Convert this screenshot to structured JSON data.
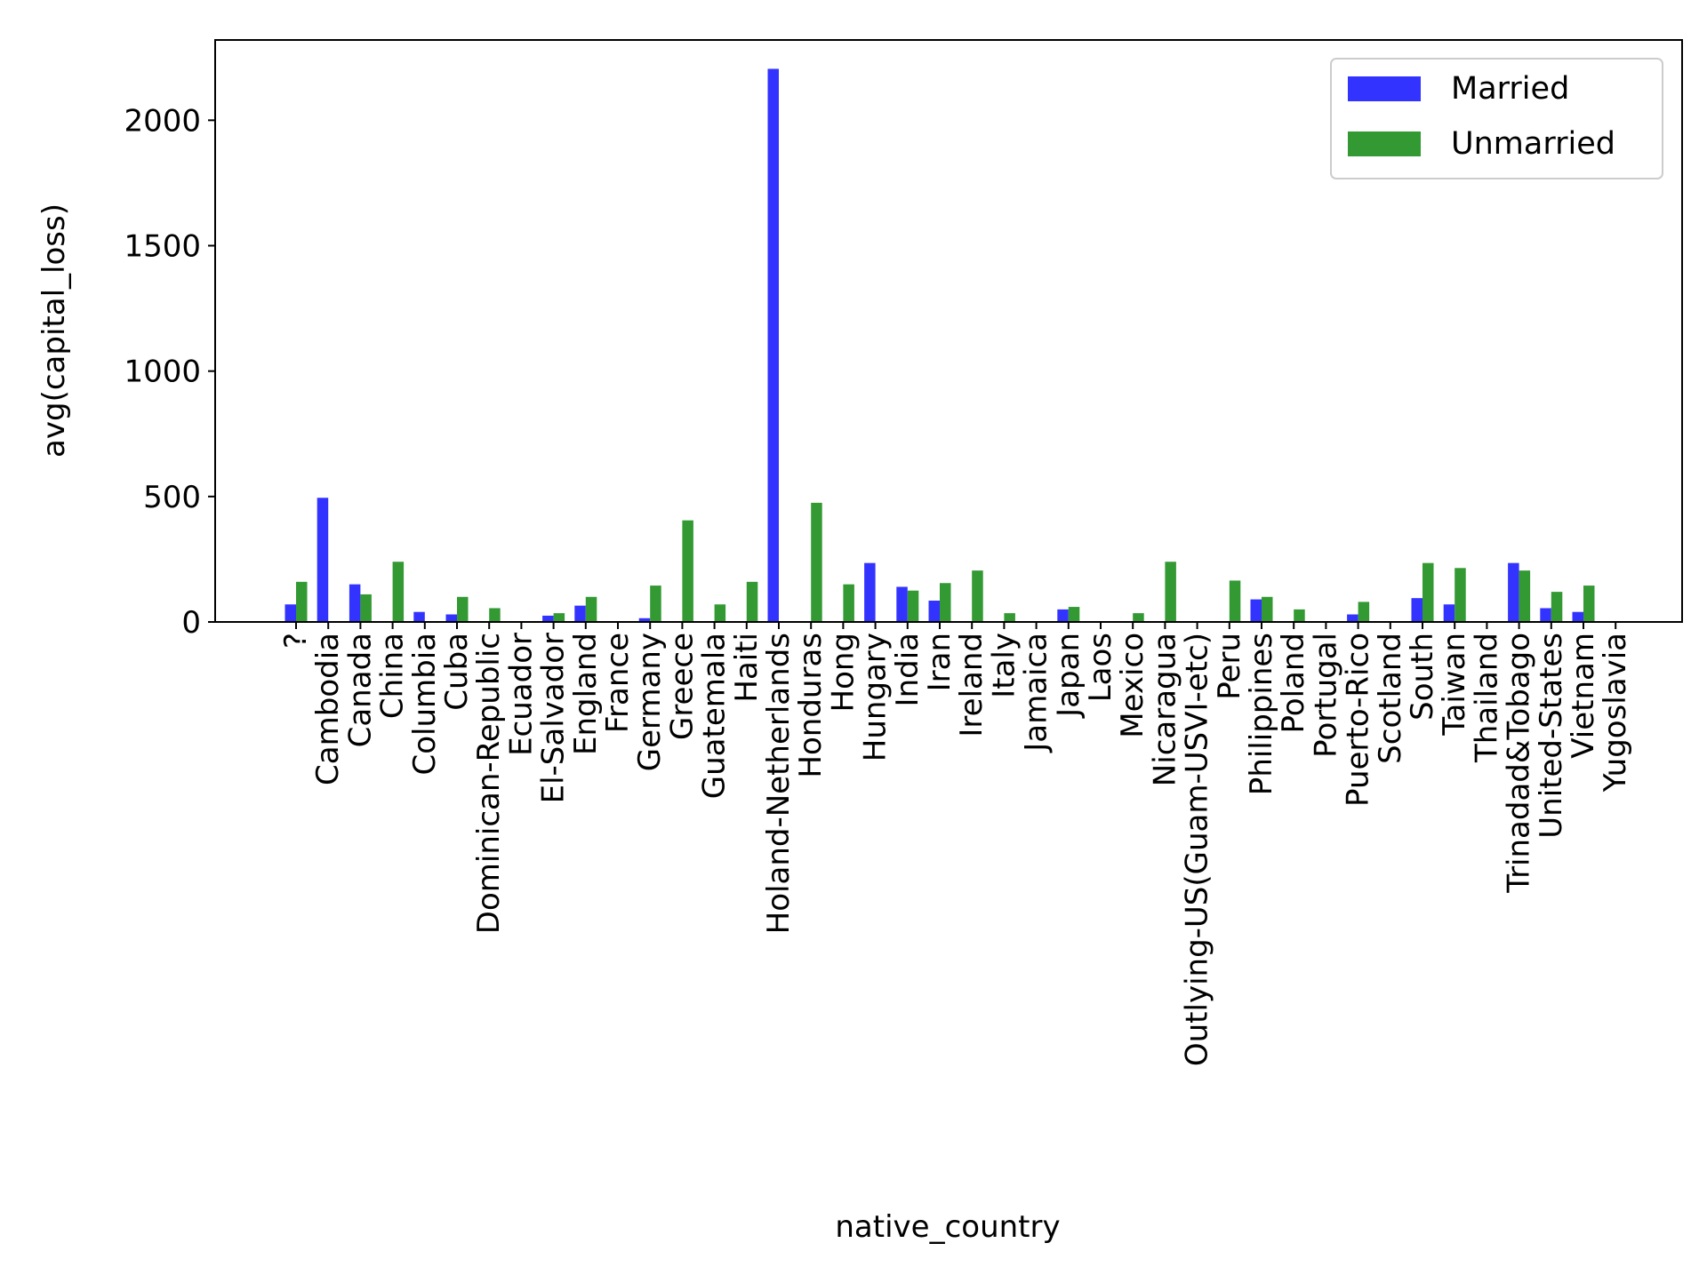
{
  "chart_data": {
    "type": "bar",
    "title": "",
    "xlabel": "native_country",
    "ylabel": "avg(capital_loss)",
    "ylim": [
      0,
      2320
    ],
    "yticks": [
      0,
      500,
      1000,
      1500,
      2000
    ],
    "grid": false,
    "legend_position": "top-right",
    "categories": [
      "?",
      "Cambodia",
      "Canada",
      "China",
      "Columbia",
      "Cuba",
      "Dominican-Republic",
      "Ecuador",
      "El-Salvador",
      "England",
      "France",
      "Germany",
      "Greece",
      "Guatemala",
      "Haiti",
      "Holand-Netherlands",
      "Honduras",
      "Hong",
      "Hungary",
      "India",
      "Iran",
      "Ireland",
      "Italy",
      "Jamaica",
      "Japan",
      "Laos",
      "Mexico",
      "Nicaragua",
      "Outlying-US(Guam-USVI-etc)",
      "Peru",
      "Philippines",
      "Poland",
      "Portugal",
      "Puerto-Rico",
      "Scotland",
      "South",
      "Taiwan",
      "Thailand",
      "Trinadad&Tobago",
      "United-States",
      "Vietnam",
      "Yugoslavia"
    ],
    "series": [
      {
        "name": "Married",
        "color": "#3333ff",
        "values": [
          70,
          495,
          150,
          0,
          40,
          30,
          0,
          0,
          25,
          65,
          0,
          15,
          0,
          0,
          0,
          2205,
          0,
          0,
          235,
          140,
          85,
          0,
          0,
          0,
          50,
          0,
          0,
          0,
          0,
          0,
          90,
          0,
          0,
          30,
          0,
          95,
          70,
          0,
          235,
          55,
          40,
          0
        ]
      },
      {
        "name": "Unmarried",
        "color": "#339933",
        "values": [
          160,
          0,
          110,
          240,
          0,
          100,
          55,
          0,
          35,
          100,
          0,
          145,
          405,
          70,
          160,
          0,
          475,
          150,
          0,
          125,
          155,
          205,
          35,
          0,
          60,
          0,
          35,
          240,
          0,
          165,
          100,
          50,
          0,
          80,
          0,
          235,
          215,
          0,
          205,
          120,
          145,
          0
        ]
      }
    ]
  }
}
